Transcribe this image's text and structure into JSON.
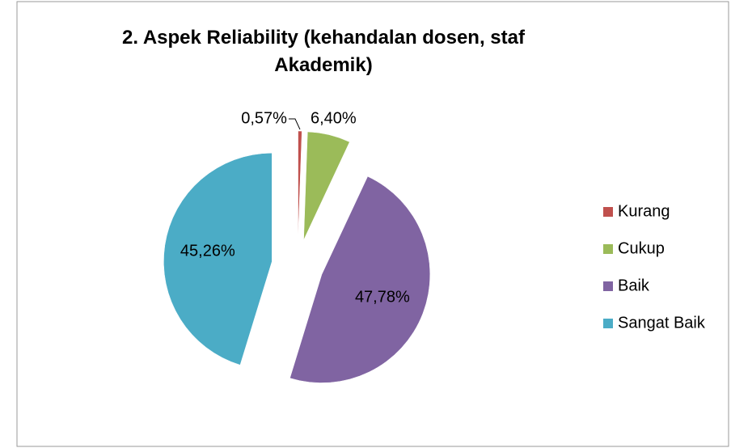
{
  "chart_data": {
    "type": "pie",
    "title": "2. Aspek Reliability (kehandalan dosen, staf Akademik)",
    "categories": [
      "Kurang",
      "Cukup",
      "Baik",
      "Sangat Baik"
    ],
    "values": [
      0.57,
      6.4,
      47.78,
      45.26
    ],
    "value_labels": [
      "0,57%",
      "6,40%",
      "47,78%",
      "45,26%"
    ],
    "colors": [
      "#c0504d",
      "#9bbb59",
      "#8064a2",
      "#4bacc6"
    ],
    "legend": "right"
  }
}
